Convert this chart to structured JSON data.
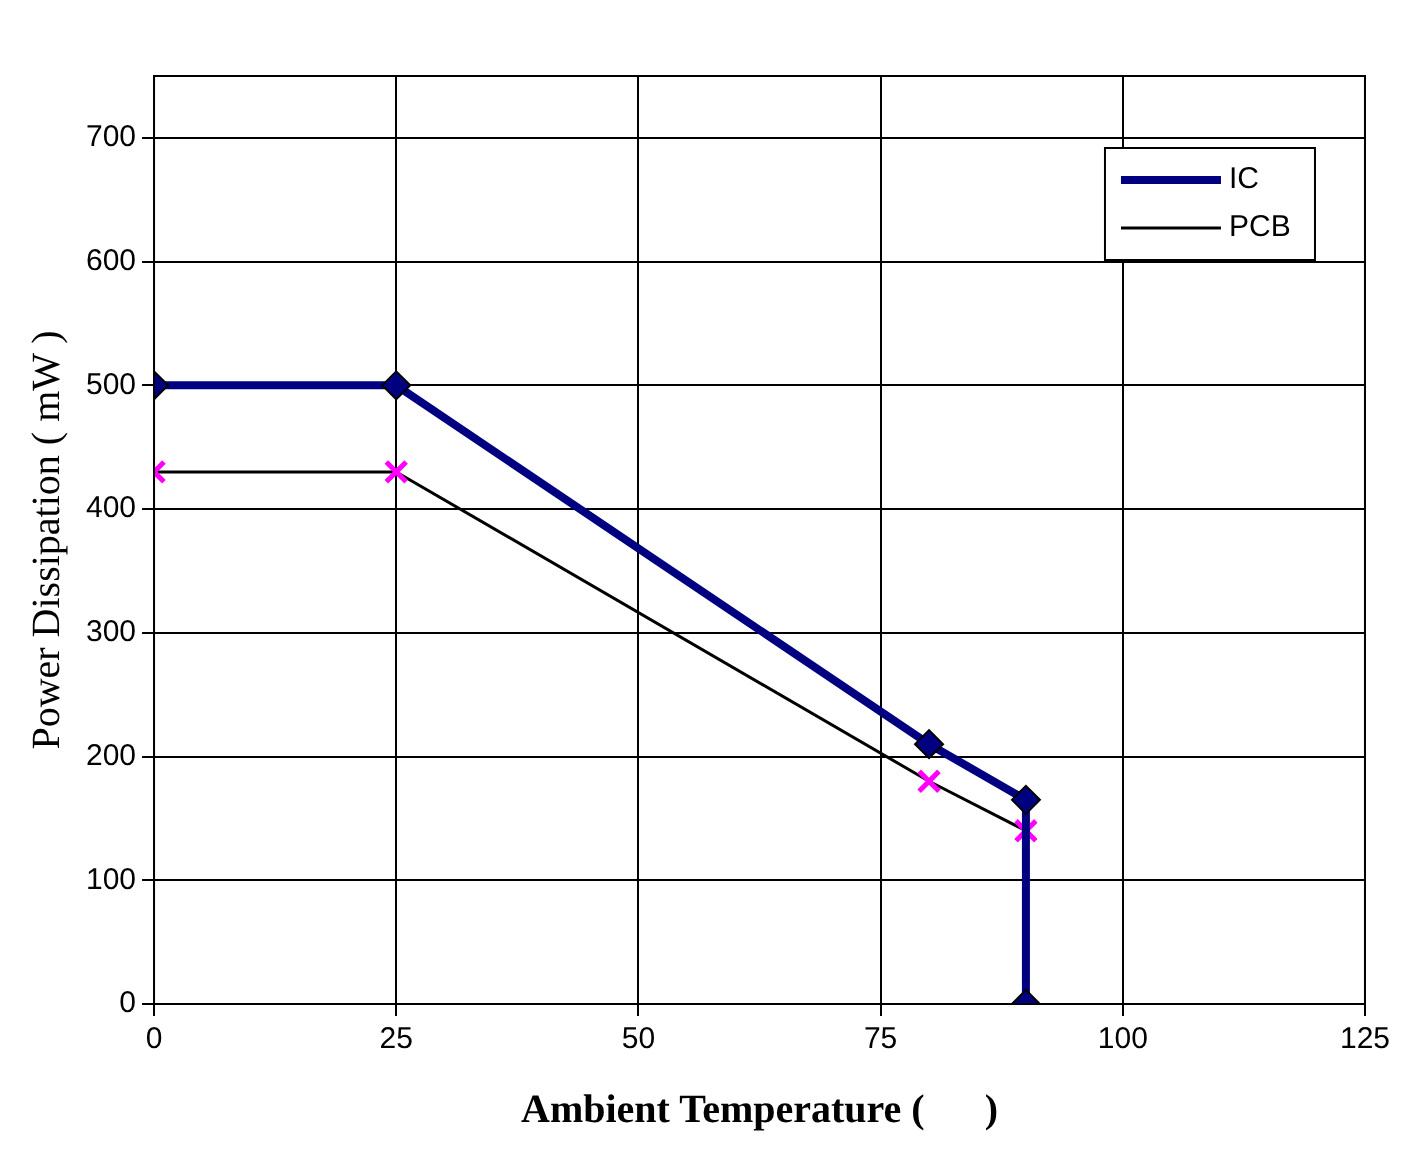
{
  "chart_data": {
    "type": "line",
    "xlabel": "Ambient Temperature (      )",
    "ylabel": "Power Dissipation ( mW )",
    "xlim": [
      0,
      125
    ],
    "xticks": [
      0,
      25,
      50,
      75,
      100,
      125
    ],
    "ylim": [
      0,
      750
    ],
    "yticks": [
      0,
      100,
      200,
      300,
      400,
      500,
      600,
      700
    ],
    "grid": true,
    "legend": "top right",
    "series": [
      {
        "name": "IC",
        "color": "#000080",
        "marker": "diamond",
        "x": [
          0,
          25,
          80,
          90,
          90
        ],
        "values": [
          500,
          500,
          210,
          165,
          0
        ]
      },
      {
        "name": "PCB",
        "color": "#000000",
        "marker": "cross",
        "x": [
          0,
          25,
          80,
          90
        ],
        "values": [
          430,
          430,
          180,
          140
        ]
      }
    ]
  }
}
